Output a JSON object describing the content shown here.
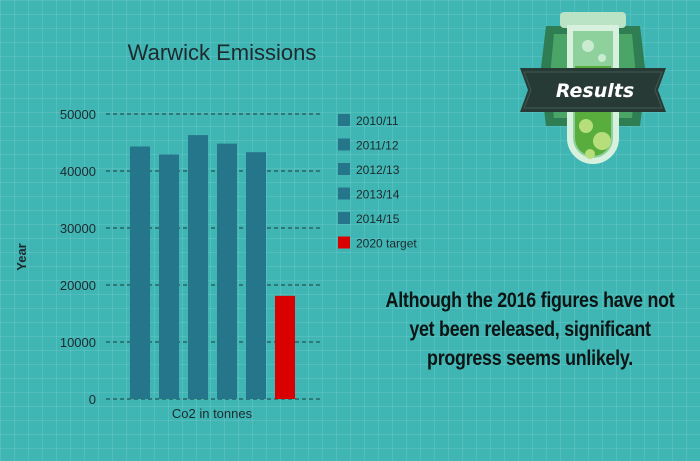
{
  "chart_data": {
    "type": "bar",
    "title": "Warwick Emissions",
    "xlabel": "Co2 in tonnes",
    "ylabel": "Year",
    "ylim": [
      0,
      50000
    ],
    "yticks": [
      "0",
      "10000",
      "20000",
      "30000",
      "40000",
      "50000"
    ],
    "grid": true,
    "legend_position": "right",
    "series": [
      {
        "name": "2010/11",
        "value": 44300,
        "color": "#25768a"
      },
      {
        "name": "2011/12",
        "value": 42900,
        "color": "#25768a"
      },
      {
        "name": "2012/13",
        "value": 46300,
        "color": "#25768a"
      },
      {
        "name": "2013/14",
        "value": 44800,
        "color": "#25768a"
      },
      {
        "name": "2014/15",
        "value": 43300,
        "color": "#25768a"
      },
      {
        "name": "2020 target",
        "value": 18100,
        "color": "#d90000"
      }
    ]
  },
  "badge": {
    "label": "Results",
    "icon": "test-tube-icon"
  },
  "note": "Although the 2016 figures have not yet been released, significant progress seems unlikely."
}
